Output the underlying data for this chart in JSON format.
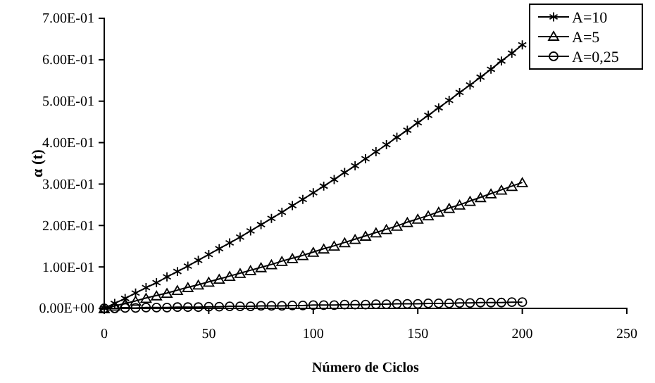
{
  "chart_data": {
    "type": "line",
    "xlabel": "Número de Ciclos",
    "ylabel": "α (t)",
    "x": [
      0,
      5,
      10,
      15,
      20,
      25,
      30,
      35,
      40,
      45,
      50,
      55,
      60,
      65,
      70,
      75,
      80,
      85,
      90,
      95,
      100,
      105,
      110,
      115,
      120,
      125,
      130,
      135,
      140,
      145,
      150,
      155,
      160,
      165,
      170,
      175,
      180,
      185,
      190,
      195,
      200
    ],
    "xlim": [
      0,
      250
    ],
    "xticks": [
      0,
      50,
      100,
      150,
      200,
      250
    ],
    "ylim": [
      0,
      0.7
    ],
    "yticks": [
      {
        "value": 0,
        "label": "0.00E+00"
      },
      {
        "value": 0.1,
        "label": "1.00E-01"
      },
      {
        "value": 0.2,
        "label": "2.00E-01"
      },
      {
        "value": 0.3,
        "label": "3.00E-01"
      },
      {
        "value": 0.4,
        "label": "4.00E-01"
      },
      {
        "value": 0.5,
        "label": "5.00E-01"
      },
      {
        "value": 0.6,
        "label": "6.00E-01"
      },
      {
        "value": 0.7,
        "label": "7.00E-01"
      }
    ],
    "grid": false,
    "legend": "top right",
    "line_style": "solid",
    "series": [
      {
        "name": "A=10",
        "color": "#000000",
        "marker": "cross",
        "values": [
          0,
          0.012,
          0.024,
          0.037,
          0.05,
          0.062,
          0.076,
          0.089,
          0.102,
          0.116,
          0.13,
          0.144,
          0.158,
          0.172,
          0.187,
          0.202,
          0.217,
          0.232,
          0.248,
          0.263,
          0.279,
          0.295,
          0.311,
          0.328,
          0.344,
          0.361,
          0.378,
          0.395,
          0.413,
          0.43,
          0.448,
          0.466,
          0.484,
          0.502,
          0.521,
          0.539,
          0.558,
          0.577,
          0.597,
          0.616,
          0.636
        ]
      },
      {
        "name": "A=5",
        "color": "#000000",
        "marker": "triangle",
        "values": [
          0,
          0.006,
          0.012,
          0.018,
          0.025,
          0.031,
          0.037,
          0.044,
          0.051,
          0.057,
          0.064,
          0.071,
          0.078,
          0.085,
          0.092,
          0.099,
          0.106,
          0.114,
          0.121,
          0.128,
          0.136,
          0.144,
          0.151,
          0.159,
          0.167,
          0.175,
          0.183,
          0.191,
          0.199,
          0.208,
          0.216,
          0.224,
          0.233,
          0.242,
          0.25,
          0.259,
          0.268,
          0.277,
          0.286,
          0.295,
          0.304
        ]
      },
      {
        "name": "A=0,25",
        "color": "#000000",
        "marker": "circle",
        "values": [
          0,
          0,
          0.001,
          0.001,
          0.002,
          0.002,
          0.002,
          0.003,
          0.003,
          0.003,
          0.004,
          0.004,
          0.005,
          0.005,
          0.005,
          0.006,
          0.006,
          0.006,
          0.007,
          0.007,
          0.008,
          0.008,
          0.008,
          0.009,
          0.009,
          0.009,
          0.01,
          0.01,
          0.011,
          0.011,
          0.011,
          0.012,
          0.012,
          0.012,
          0.013,
          0.013,
          0.014,
          0.014,
          0.014,
          0.015,
          0.015
        ]
      }
    ]
  }
}
